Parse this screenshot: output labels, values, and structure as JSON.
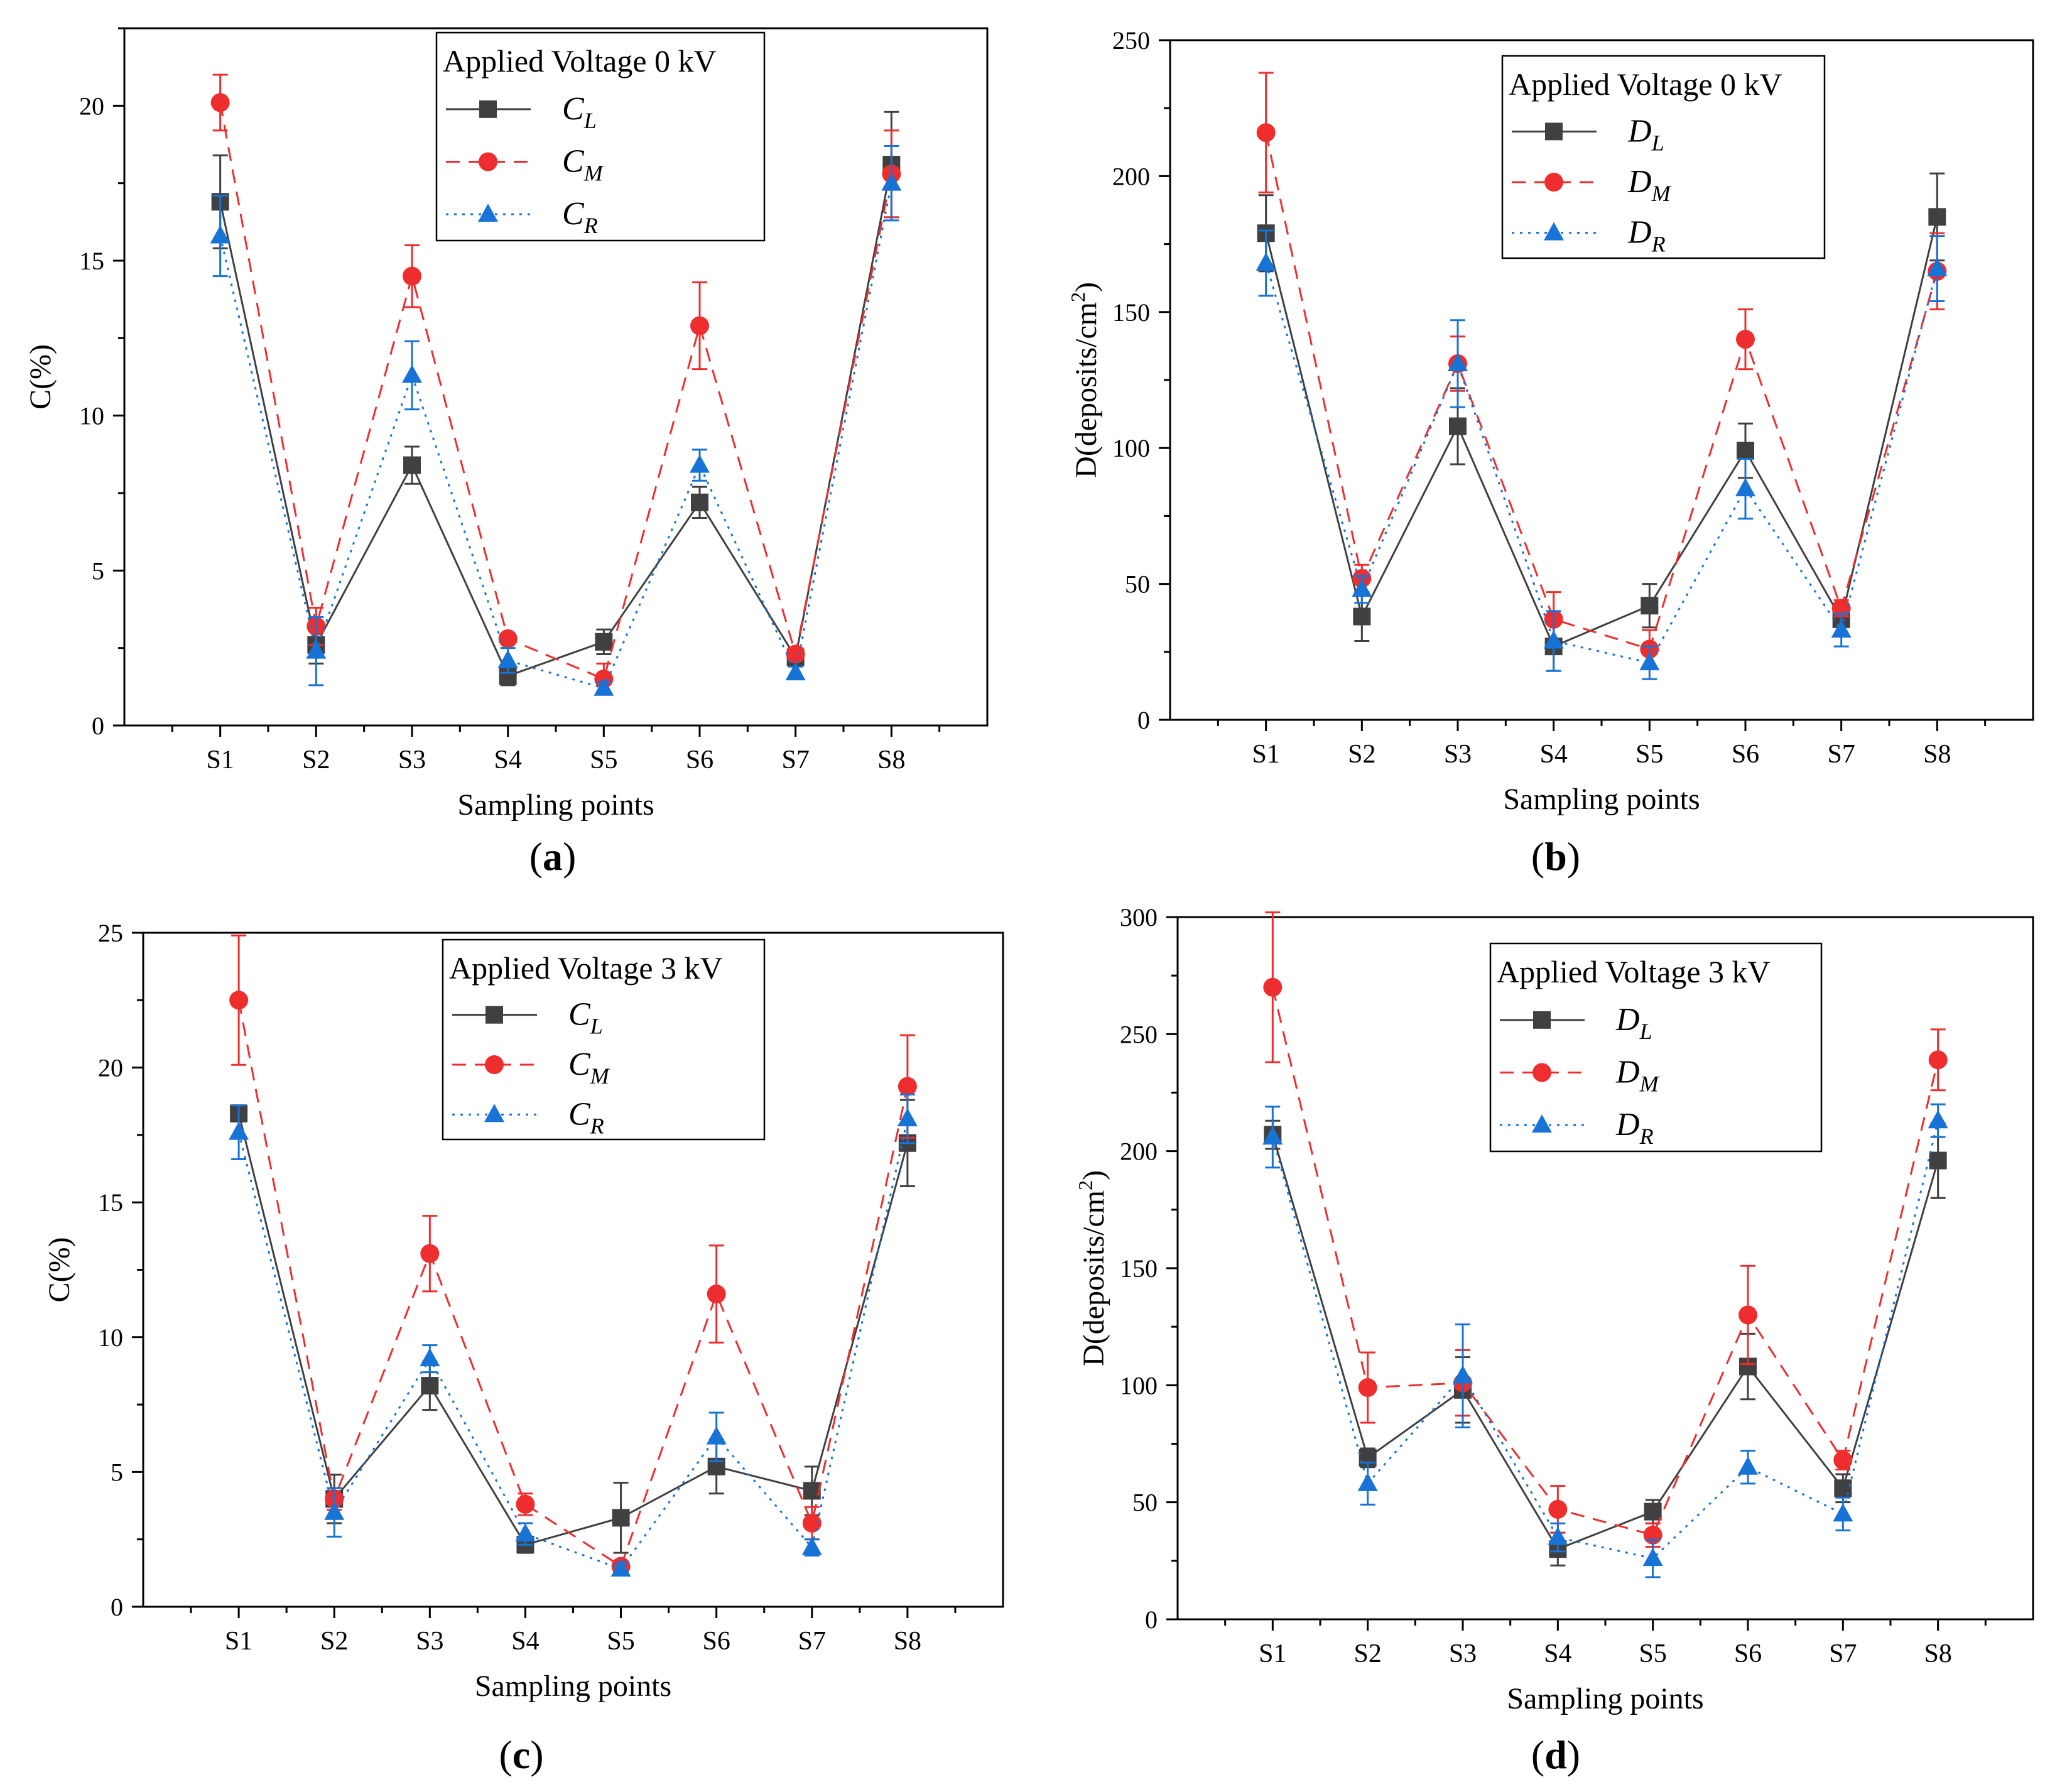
{
  "chart_data": [
    {
      "panel": "a",
      "type": "line",
      "caption": "(a)",
      "xlabel": "Sampling points",
      "ylabel": "C(%)",
      "ylim": [
        0,
        22.5
      ],
      "yticks": [
        0,
        5,
        10,
        15,
        20
      ],
      "categories": [
        "S1",
        "S2",
        "S3",
        "S4",
        "S5",
        "S6",
        "S7",
        "S8"
      ],
      "legend": {
        "title": "Applied Voltage 0 kV",
        "position": "top-right"
      },
      "series": [
        {
          "name": "C",
          "sub": "L",
          "color": "#404040",
          "marker": "square",
          "dash": "solid",
          "values": [
            16.9,
            2.6,
            8.4,
            1.6,
            2.7,
            7.2,
            2.2,
            18.1
          ],
          "errors": [
            1.5,
            0.6,
            0.6,
            0.3,
            0.4,
            0.5,
            0.2,
            1.7
          ]
        },
        {
          "name": "C",
          "sub": "M",
          "color": "#ee2e2e",
          "marker": "circle",
          "dash": "dashed",
          "values": [
            20.1,
            3.2,
            14.5,
            2.8,
            1.5,
            12.9,
            2.3,
            17.8
          ],
          "errors": [
            0.9,
            0.6,
            1.0,
            0.1,
            0.5,
            1.4,
            0.2,
            1.4
          ]
        },
        {
          "name": "C",
          "sub": "R",
          "color": "#1873d6",
          "marker": "triangle",
          "dash": "dotted",
          "values": [
            15.8,
            2.4,
            11.3,
            2.1,
            1.2,
            8.4,
            1.7,
            17.5
          ],
          "errors": [
            1.3,
            1.1,
            1.1,
            0.4,
            0.2,
            0.5,
            0.2,
            1.2
          ]
        }
      ]
    },
    {
      "panel": "b",
      "type": "line",
      "caption": "(b)",
      "xlabel": "Sampling points",
      "ylabel": "D(deposits/cm",
      "ylabel_sup": "2",
      "ylabel_tail": ")",
      "ylim": [
        0,
        250
      ],
      "yticks": [
        0,
        50,
        100,
        150,
        200,
        250
      ],
      "categories": [
        "S1",
        "S2",
        "S3",
        "S4",
        "S5",
        "S6",
        "S7",
        "S8"
      ],
      "legend": {
        "title": "Applied Voltage 0 kV",
        "position": "top-right"
      },
      "series": [
        {
          "name": "D",
          "sub": "L",
          "color": "#404040",
          "marker": "square",
          "dash": "solid",
          "values": [
            179,
            38,
            108,
            27,
            42,
            99,
            37,
            185
          ],
          "errors": [
            14,
            9,
            14,
            9,
            8,
            10,
            6,
            16
          ]
        },
        {
          "name": "D",
          "sub": "M",
          "color": "#ee2e2e",
          "marker": "circle",
          "dash": "dashed",
          "values": [
            216,
            52,
            131,
            37,
            26,
            140,
            41,
            165
          ],
          "errors": [
            22,
            5,
            10,
            10,
            7,
            11,
            3,
            14
          ]
        },
        {
          "name": "D",
          "sub": "R",
          "color": "#1873d6",
          "marker": "triangle",
          "dash": "dotted",
          "values": [
            168,
            48,
            131,
            29,
            21,
            85,
            33,
            166
          ],
          "errors": [
            12,
            5,
            16,
            11,
            6,
            11,
            6,
            12
          ]
        }
      ]
    },
    {
      "panel": "c",
      "type": "line",
      "caption": "(c)",
      "xlabel": "Sampling points",
      "ylabel": "C(%)",
      "ylim": [
        0,
        25
      ],
      "yticks": [
        0,
        5,
        10,
        15,
        20,
        25
      ],
      "categories": [
        "S1",
        "S2",
        "S3",
        "S4",
        "S5",
        "S6",
        "S7",
        "S8"
      ],
      "legend": {
        "title": "Applied Voltage 3 kV",
        "position": "top-right"
      },
      "series": [
        {
          "name": "C",
          "sub": "L",
          "color": "#404040",
          "marker": "square",
          "dash": "solid",
          "values": [
            18.3,
            4.0,
            8.2,
            2.3,
            3.3,
            5.2,
            4.3,
            17.2
          ],
          "errors": [
            0.3,
            0.9,
            0.9,
            0.3,
            1.3,
            1.0,
            0.9,
            1.6
          ]
        },
        {
          "name": "C",
          "sub": "M",
          "color": "#ee2e2e",
          "marker": "circle",
          "dash": "dashed",
          "values": [
            22.5,
            4.0,
            13.1,
            3.8,
            1.5,
            11.6,
            3.1,
            19.3
          ],
          "errors": [
            2.4,
            0.4,
            1.4,
            0.4,
            0.2,
            1.8,
            0.6,
            1.9
          ]
        },
        {
          "name": "C",
          "sub": "R",
          "color": "#1873d6",
          "marker": "triangle",
          "dash": "dotted",
          "values": [
            17.6,
            3.5,
            9.2,
            2.7,
            1.4,
            6.3,
            2.2,
            18.1
          ],
          "errors": [
            1.0,
            0.9,
            0.5,
            0.4,
            0.2,
            0.9,
            0.3,
            0.9
          ]
        }
      ]
    },
    {
      "panel": "d",
      "type": "line",
      "caption": "(d)",
      "xlabel": "Sampling points",
      "ylabel": "D(deposits/cm",
      "ylabel_sup": "2",
      "ylabel_tail": ")",
      "ylim": [
        0,
        300
      ],
      "yticks": [
        0,
        50,
        100,
        150,
        200,
        250,
        300
      ],
      "categories": [
        "S1",
        "S2",
        "S3",
        "S4",
        "S5",
        "S6",
        "S7",
        "S8"
      ],
      "legend": {
        "title": "Applied Voltage 3 kV",
        "position": "top-right"
      },
      "series": [
        {
          "name": "D",
          "sub": "L",
          "color": "#404040",
          "marker": "square",
          "dash": "solid",
          "values": [
            207,
            69,
            98,
            30,
            46,
            108,
            56,
            196
          ],
          "errors": [
            6,
            4,
            14,
            7,
            5,
            14,
            6,
            16
          ]
        },
        {
          "name": "D",
          "sub": "M",
          "color": "#ee2e2e",
          "marker": "circle",
          "dash": "dashed",
          "values": [
            270,
            99,
            101,
            47,
            36,
            130,
            68,
            239
          ],
          "errors": [
            32,
            15,
            14,
            10,
            5,
            21,
            4,
            13
          ]
        },
        {
          "name": "D",
          "sub": "R",
          "color": "#1873d6",
          "marker": "triangle",
          "dash": "dotted",
          "values": [
            206,
            58,
            104,
            35,
            26,
            65,
            45,
            213
          ],
          "errors": [
            13,
            9,
            22,
            6,
            8,
            7,
            7,
            7
          ]
        }
      ]
    }
  ]
}
